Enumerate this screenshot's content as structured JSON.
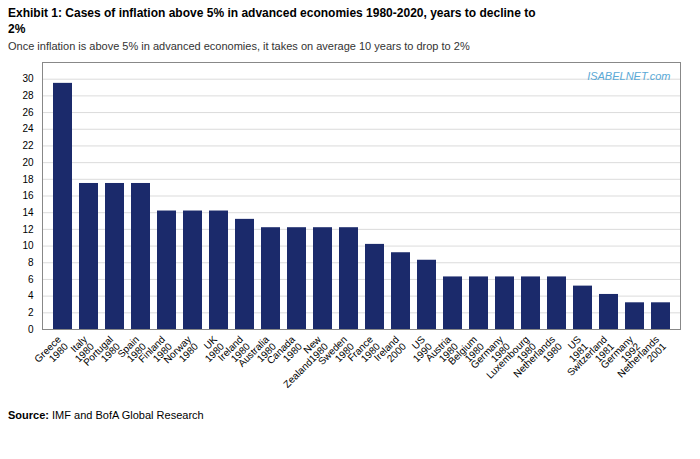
{
  "chart_data": {
    "type": "bar",
    "title": "Exhibit 1: Cases of inflation above 5% in advanced economies 1980-2020, years to decline to\n2%",
    "subtitle": "Once inflation is above 5% in advanced economies, it takes on average 10 years to drop to 2%",
    "source": "Source: IMF and BofA Global Research",
    "annotations": [
      "ISABELNET.com"
    ],
    "categories": [
      "Greece\n1980",
      "Italy\n1980",
      "Portugal\n1980",
      "Spain\n1980",
      "Finland\n1980",
      "Norway\n1980",
      "UK\n1980",
      "Ireland\n1980",
      "Australia\n1980",
      "Canada\n1980",
      "New\nZealand1980",
      "Sweden\n1980",
      "France\n1980",
      "Ireland\n2000",
      "US\n1990",
      "Austria\n1980",
      "Belgium\n1980",
      "Germany\n1980",
      "Luxembourg\n1980",
      "Netherlands\n1980",
      "US\n1981",
      "Switzerland\n1981",
      "Germany\n1992",
      "Netherlands\n2001"
    ],
    "values": [
      29.5,
      17.5,
      17.5,
      17.5,
      14.2,
      14.2,
      14.2,
      13.2,
      12.2,
      12.2,
      12.2,
      12.2,
      10.2,
      9.2,
      8.3,
      6.3,
      6.3,
      6.3,
      6.3,
      6.3,
      5.2,
      4.2,
      3.2,
      3.2
    ],
    "color": "#1b2a6b",
    "ylim": [
      0,
      32
    ],
    "yticks": [
      0,
      2,
      4,
      6,
      8,
      10,
      12,
      14,
      16,
      18,
      20,
      22,
      24,
      26,
      28,
      30
    ],
    "grid": true
  }
}
